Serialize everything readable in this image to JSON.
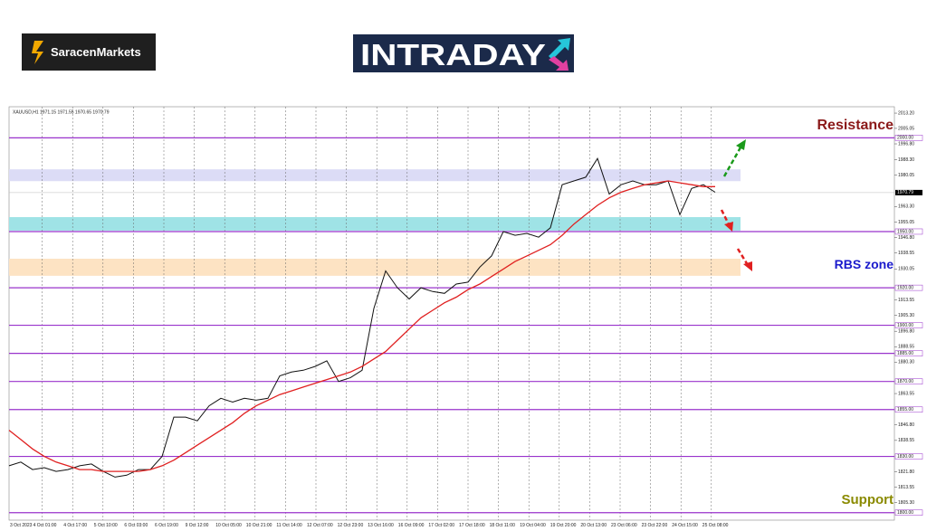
{
  "brand": "SaracenMarkets",
  "logo": "INTRADAY",
  "chart_data": {
    "type": "line",
    "header": "XAUUSD,H1  1971.15 1971.55 1970.65 1970.79",
    "x_labels": [
      "3 Oct 2023",
      "4 Oct 01:00",
      "4 Oct 17:00",
      "5 Oct 10:00",
      "6 Oct 03:00",
      "6 Oct 19:00",
      "9 Oct 12:00",
      "10 Oct 05:00",
      "10 Oct 21:00",
      "11 Oct 14:00",
      "12 Oct 07:00",
      "12 Oct 23:00",
      "13 Oct 16:00",
      "16 Oct 09:00",
      "17 Oct 02:00",
      "17 Oct 18:00",
      "18 Oct 11:00",
      "19 Oct 04:00",
      "19 Oct 20:00",
      "20 Oct 13:00",
      "23 Oct 06:00",
      "23 Oct 22:00",
      "24 Oct 15:00",
      "25 Oct 08:00"
    ],
    "ylim": [
      1796,
      2016.6
    ],
    "yticks": [
      {
        "value": 2013.2,
        "label": "2013.20"
      },
      {
        "value": 2005.05,
        "label": "2005.05"
      },
      {
        "value": 1996.8,
        "label": "1996.80"
      },
      {
        "value": 1988.3,
        "label": "1988.30"
      },
      {
        "value": 1980.05,
        "label": "1980.05"
      },
      {
        "value": 1963.3,
        "label": "1963.30"
      },
      {
        "value": 1955.05,
        "label": "1955.05"
      },
      {
        "value": 1946.8,
        "label": "1946.80"
      },
      {
        "value": 1938.55,
        "label": "1938.55"
      },
      {
        "value": 1930.05,
        "label": "1930.05"
      },
      {
        "value": 1913.55,
        "label": "1913.55"
      },
      {
        "value": 1905.3,
        "label": "1905.30"
      },
      {
        "value": 1896.8,
        "label": "1896.80"
      },
      {
        "value": 1888.55,
        "label": "1888.55"
      },
      {
        "value": 1880.3,
        "label": "1880.30"
      },
      {
        "value": 1863.55,
        "label": "1863.55"
      },
      {
        "value": 1846.8,
        "label": "1846.80"
      },
      {
        "value": 1838.55,
        "label": "1838.55"
      },
      {
        "value": 1821.8,
        "label": "1821.80"
      },
      {
        "value": 1813.55,
        "label": "1813.55"
      },
      {
        "value": 1805.3,
        "label": "1805.30"
      }
    ],
    "levels": [
      {
        "value": 2000,
        "label": "2000.00"
      },
      {
        "value": 1950,
        "label": "1950.00"
      },
      {
        "value": 1920,
        "label": "1920.00"
      },
      {
        "value": 1900,
        "label": "1900.00"
      },
      {
        "value": 1885,
        "label": "1885.00"
      },
      {
        "value": 1870,
        "label": "1870.00"
      },
      {
        "value": 1855,
        "label": "1855.00"
      },
      {
        "value": 1830,
        "label": "1830.00"
      },
      {
        "value": 1800,
        "label": "1800.00"
      }
    ],
    "level_color": "#9933cc",
    "current_price": {
      "value": 1970.79,
      "label": "1970.79"
    },
    "zones": [
      {
        "from": 1976.9,
        "to": 1983.2,
        "color": "#dcdcf6"
      },
      {
        "from": 1950.5,
        "to": 1957.7,
        "color": "#9fe3e6"
      },
      {
        "from": 1926.4,
        "to": 1935.5,
        "color": "#fde3c3"
      }
    ],
    "series": [
      {
        "color": "#111111",
        "values": [
          1825,
          1827,
          1823,
          1824,
          1822,
          1823,
          1825,
          1826,
          1822,
          1819,
          1820,
          1823,
          1823,
          1830,
          1851,
          1851,
          1849,
          1857,
          1861,
          1859,
          1861,
          1860,
          1861,
          1873,
          1875,
          1876,
          1878,
          1881,
          1870,
          1872,
          1876,
          1909,
          1929,
          1920,
          1914,
          1920,
          1918,
          1917,
          1922,
          1923,
          1931,
          1937,
          1950,
          1948,
          1949,
          1947,
          1952,
          1975,
          1977,
          1979,
          1989,
          1970,
          1975,
          1977,
          1975,
          1975,
          1977,
          1959,
          1973,
          1975,
          1971
        ]
      },
      {
        "color": "#e02020",
        "values": [
          1844,
          1839,
          1834,
          1830,
          1827,
          1825,
          1823,
          1823,
          1822,
          1822,
          1822,
          1822,
          1823,
          1825,
          1828,
          1832,
          1836,
          1840,
          1844,
          1848,
          1853,
          1857,
          1860,
          1863,
          1865,
          1867,
          1869,
          1871,
          1873,
          1875,
          1878,
          1882,
          1886,
          1892,
          1898,
          1904,
          1908,
          1912,
          1915,
          1919,
          1922,
          1926,
          1930,
          1934,
          1937,
          1940,
          1943,
          1948,
          1954,
          1959,
          1964,
          1968,
          1971,
          1973,
          1975,
          1976,
          1977,
          1976,
          1975,
          1974,
          1974
        ]
      }
    ],
    "annotations": [
      {
        "text": "Resistance",
        "color": "#8b1a1a"
      },
      {
        "text": "RBS zone",
        "color": "#1a1acc"
      },
      {
        "text": "Support",
        "color": "#8a8a00"
      }
    ]
  }
}
